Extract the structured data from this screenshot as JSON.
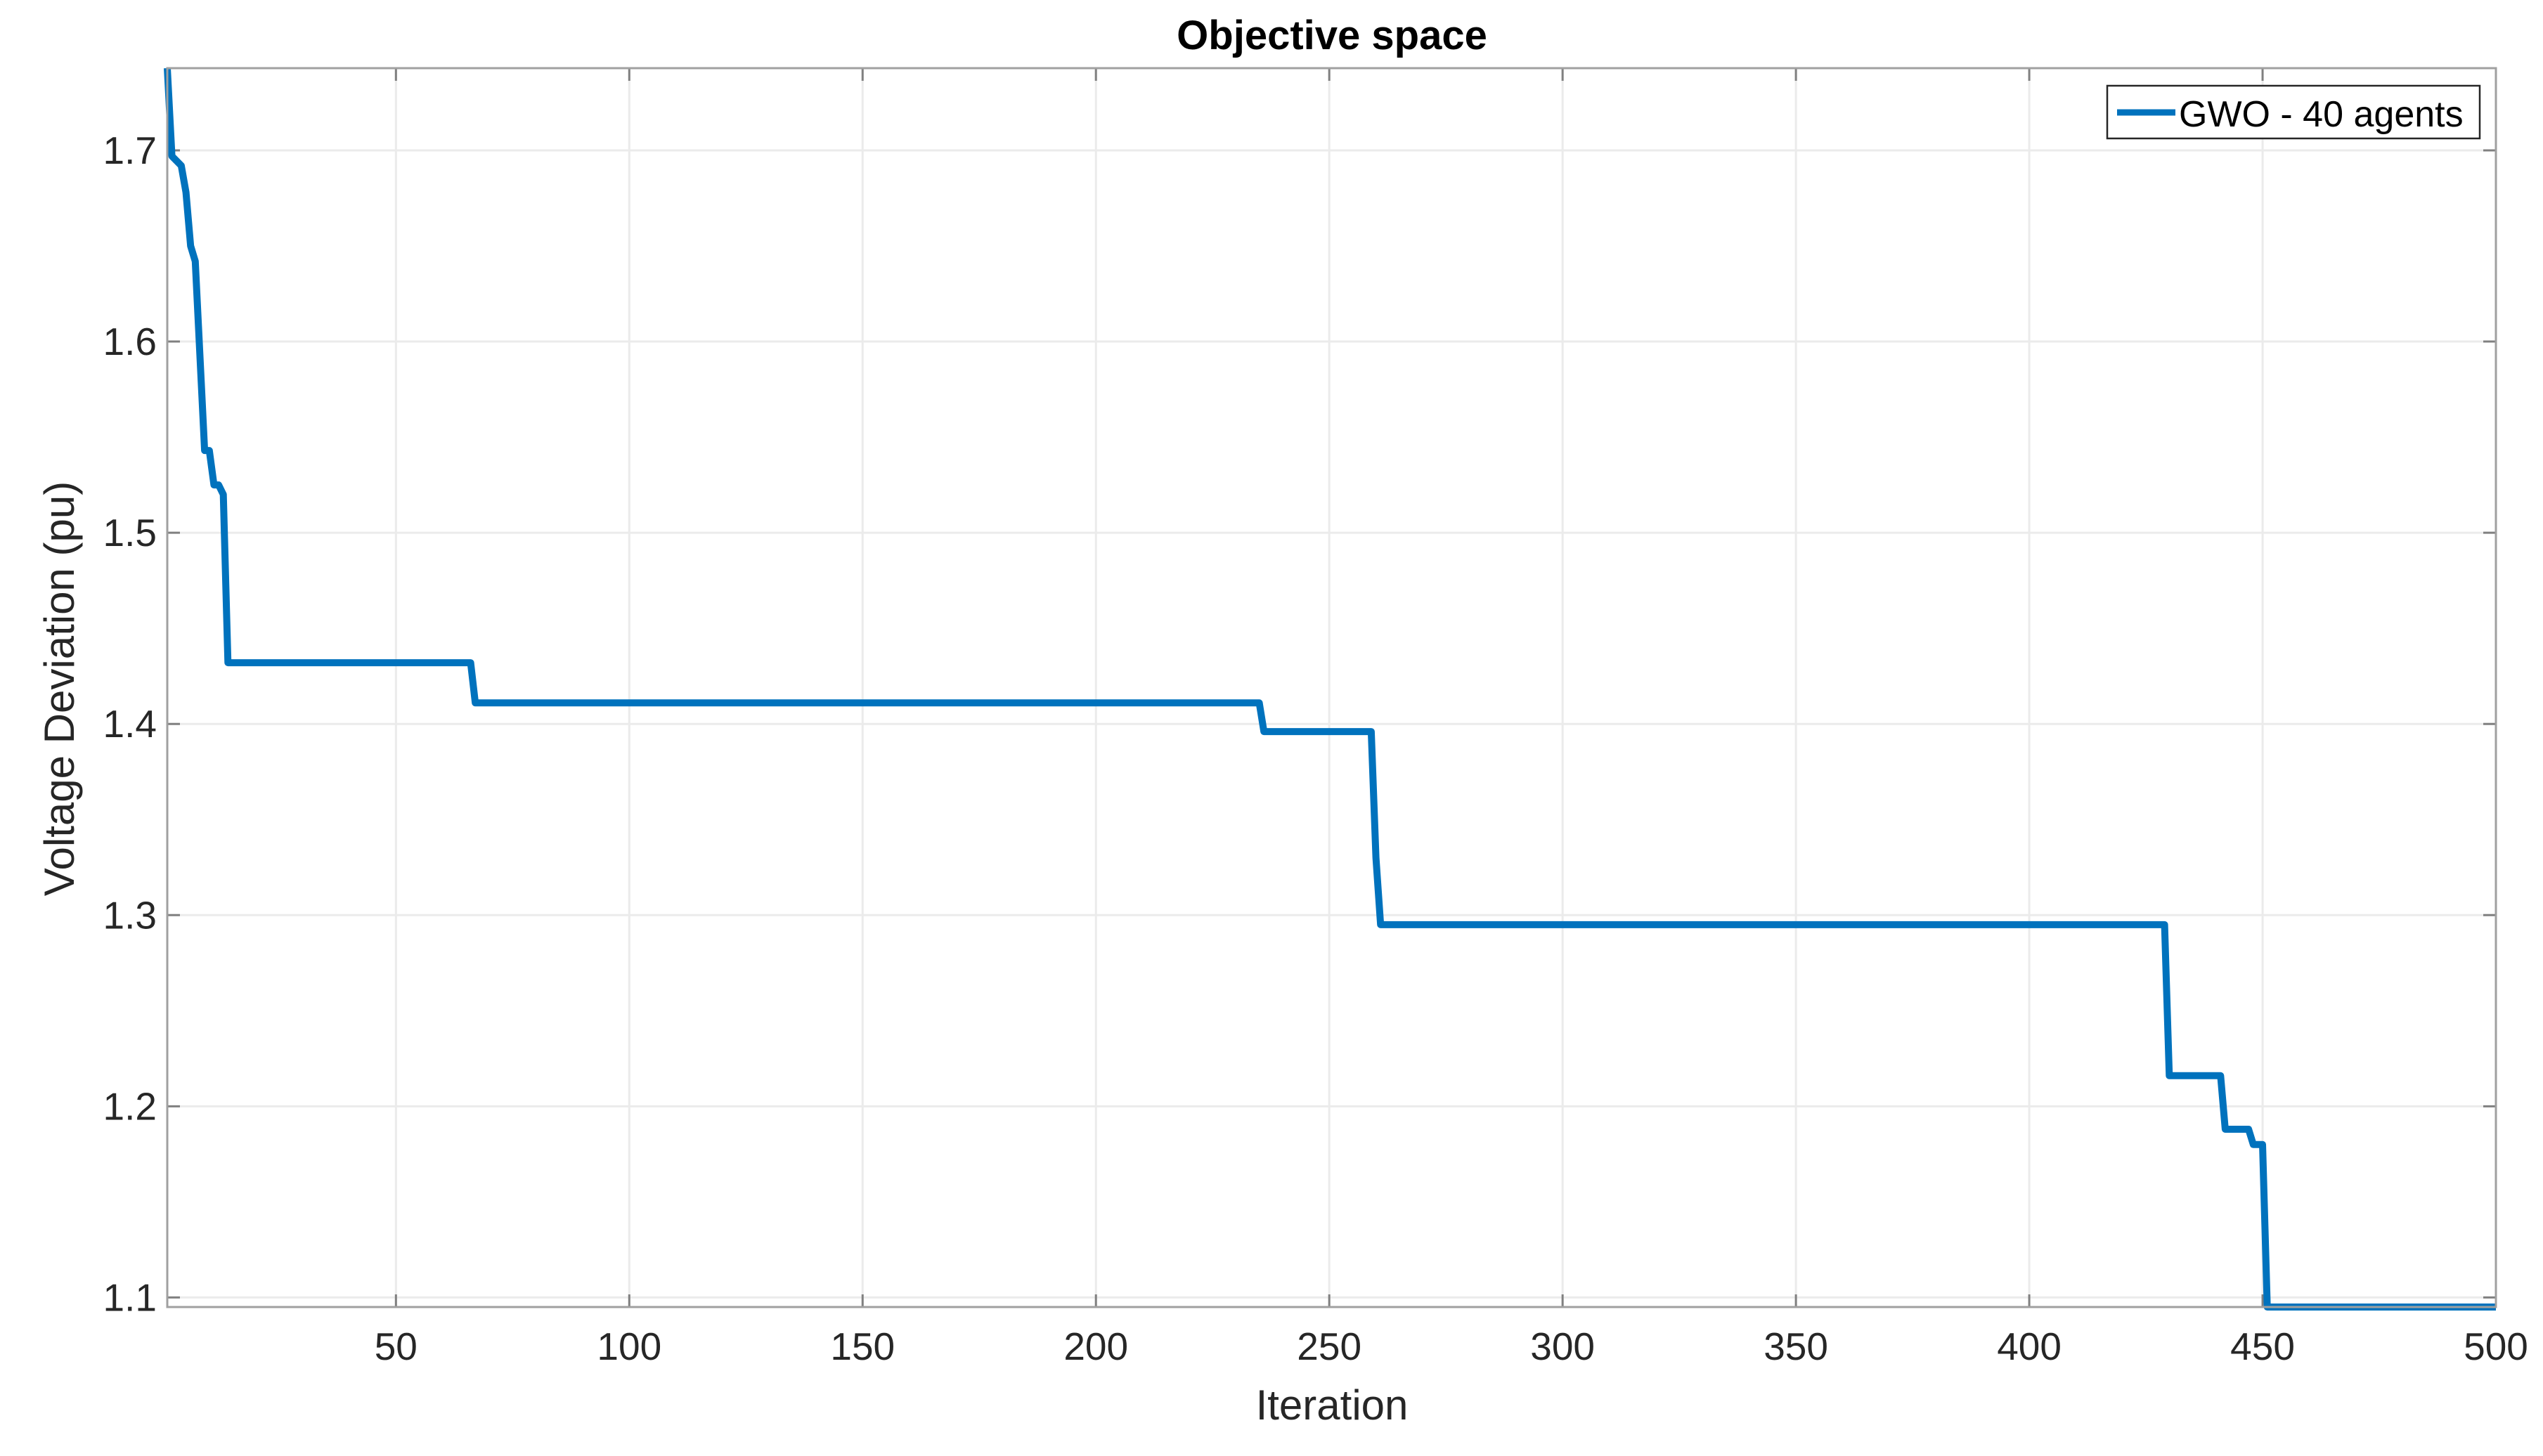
{
  "chart_data": {
    "type": "line",
    "title": "Objective space",
    "xlabel": "Iteration",
    "ylabel": "Voltage Deviation (pu)",
    "xlim": [
      1,
      500
    ],
    "ylim": [
      1.095,
      1.743
    ],
    "xticks": [
      50,
      100,
      150,
      200,
      250,
      300,
      350,
      400,
      450,
      500
    ],
    "yticks": [
      1.1,
      1.2,
      1.3,
      1.4,
      1.5,
      1.6,
      1.7
    ],
    "ytick_labels": [
      "1.1",
      "1.2",
      "1.3",
      "1.4",
      "1.5",
      "1.6",
      "1.7"
    ],
    "grid": true,
    "legend_position": "top-right",
    "series": [
      {
        "name": "GWO - 40 agents",
        "color": "#0072BD",
        "x": [
          1,
          2,
          4,
          5,
          6,
          7,
          9,
          10,
          11,
          12,
          13,
          14,
          66,
          67,
          235,
          236,
          259,
          260,
          261,
          429,
          430,
          441,
          442,
          447,
          448,
          450,
          451,
          500
        ],
        "y": [
          1.743,
          1.697,
          1.692,
          1.678,
          1.65,
          1.642,
          1.543,
          1.543,
          1.525,
          1.525,
          1.52,
          1.432,
          1.432,
          1.411,
          1.411,
          1.396,
          1.396,
          1.33,
          1.295,
          1.295,
          1.216,
          1.216,
          1.188,
          1.188,
          1.18,
          1.18,
          1.095,
          1.095
        ]
      }
    ]
  }
}
